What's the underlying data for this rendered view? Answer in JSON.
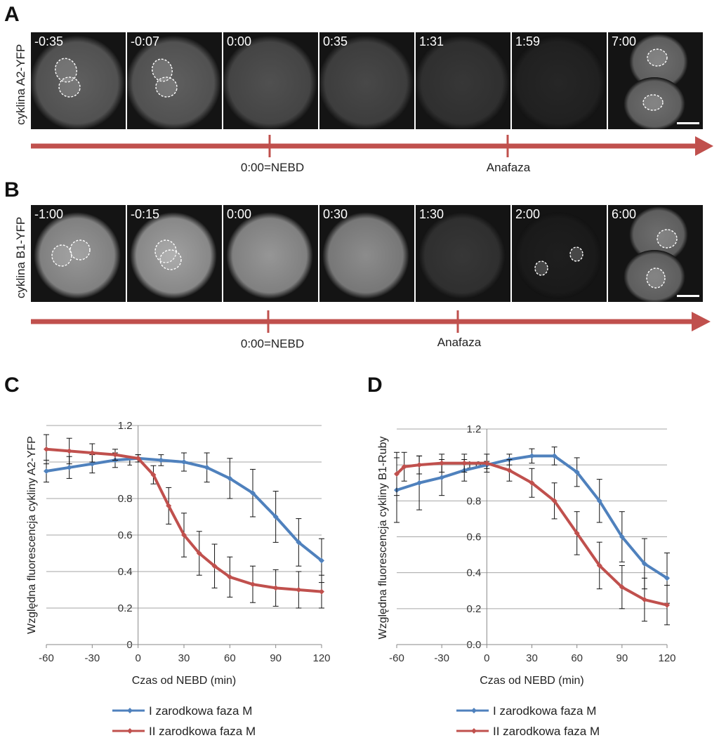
{
  "panel_a": {
    "letter": "A",
    "side_label": "cyklina A2-YFP",
    "frames": [
      "-0:35",
      "-0:07",
      "0:00",
      "0:35",
      "1:31",
      "1:59",
      "7:00"
    ],
    "timeline_labels": [
      "0:00=NEBD",
      "Anafaza"
    ]
  },
  "panel_b": {
    "letter": "B",
    "side_label": "cyklina B1-YFP",
    "frames": [
      "-1:00",
      "-0:15",
      "0:00",
      "0:30",
      "1:30",
      "2:00",
      "6:00"
    ],
    "timeline_labels": [
      "0:00=NEBD",
      "Anafaza"
    ]
  },
  "colors": {
    "arrow": "#c0504d",
    "blue": "#4f81bd",
    "red": "#c0504d"
  },
  "chart_data": [
    {
      "type": "line",
      "panel": "C",
      "xlabel": "Czas od NEBD (min)",
      "ylabel": "Względna fluorescencja cykliny A2-YFP",
      "xlim": [
        -60,
        120
      ],
      "ylim": [
        0,
        1.2
      ],
      "xticks": [
        "-60",
        "-30",
        "0",
        "30",
        "60",
        "90",
        "120"
      ],
      "yticks": [
        "0",
        "0.2",
        "0.4",
        "0.6",
        "0.8",
        "1",
        "1.2"
      ],
      "grid": true,
      "legend_placement": "bottom",
      "series": [
        {
          "name": "I zarodkowa faza M",
          "color": "#4f81bd",
          "x": [
            -60,
            -45,
            -30,
            -15,
            0,
            15,
            30,
            45,
            60,
            75,
            90,
            105,
            120
          ],
          "y": [
            0.95,
            0.97,
            0.99,
            1.01,
            1.02,
            1.01,
            1.0,
            0.97,
            0.91,
            0.83,
            0.7,
            0.56,
            0.46
          ],
          "err": [
            0.06,
            0.06,
            0.05,
            0.04,
            0.02,
            0.03,
            0.05,
            0.08,
            0.11,
            0.13,
            0.14,
            0.13,
            0.12
          ]
        },
        {
          "name": "II zarodkowa faza M",
          "color": "#c0504d",
          "x": [
            -60,
            -45,
            -30,
            -15,
            0,
            10,
            20,
            30,
            40,
            50,
            60,
            75,
            90,
            105,
            120
          ],
          "y": [
            1.07,
            1.06,
            1.05,
            1.04,
            1.02,
            0.93,
            0.76,
            0.6,
            0.5,
            0.43,
            0.37,
            0.33,
            0.31,
            0.3,
            0.29
          ],
          "err": [
            0.08,
            0.07,
            0.05,
            0.03,
            0.02,
            0.05,
            0.1,
            0.12,
            0.12,
            0.12,
            0.11,
            0.1,
            0.1,
            0.1,
            0.09
          ]
        }
      ]
    },
    {
      "type": "line",
      "panel": "D",
      "xlabel": "Czas od NEBD (min)",
      "ylabel": "Względna fluorescencja cykliny B1-Ruby",
      "xlim": [
        -60,
        120
      ],
      "ylim": [
        0,
        1.2
      ],
      "xticks": [
        "-60",
        "-30",
        "0",
        "30",
        "60",
        "90",
        "120"
      ],
      "yticks": [
        "0.0",
        "0.2",
        "0.4",
        "0.6",
        "0.8",
        "1.0",
        "1.2"
      ],
      "grid": true,
      "legend_placement": "bottom",
      "series": [
        {
          "name": "I zarodkowa faza M",
          "color": "#4f81bd",
          "x": [
            -60,
            -45,
            -30,
            -15,
            0,
            15,
            30,
            45,
            60,
            75,
            90,
            105,
            120
          ],
          "y": [
            0.86,
            0.9,
            0.93,
            0.97,
            1.0,
            1.03,
            1.05,
            1.05,
            0.96,
            0.8,
            0.6,
            0.45,
            0.37
          ],
          "err": [
            0.18,
            0.15,
            0.1,
            0.06,
            0.02,
            0.03,
            0.04,
            0.05,
            0.08,
            0.12,
            0.14,
            0.14,
            0.14
          ]
        },
        {
          "name": "II zarodkowa faza M",
          "color": "#c0504d",
          "x": [
            -60,
            -55,
            -45,
            -30,
            -15,
            0,
            15,
            30,
            45,
            60,
            75,
            90,
            105,
            120
          ],
          "y": [
            0.95,
            0.99,
            1.0,
            1.01,
            1.01,
            1.01,
            0.97,
            0.9,
            0.8,
            0.62,
            0.44,
            0.32,
            0.25,
            0.22
          ],
          "err": [
            0.12,
            0.08,
            0.05,
            0.05,
            0.05,
            0.05,
            0.06,
            0.08,
            0.1,
            0.12,
            0.13,
            0.12,
            0.12,
            0.11
          ]
        }
      ]
    }
  ]
}
